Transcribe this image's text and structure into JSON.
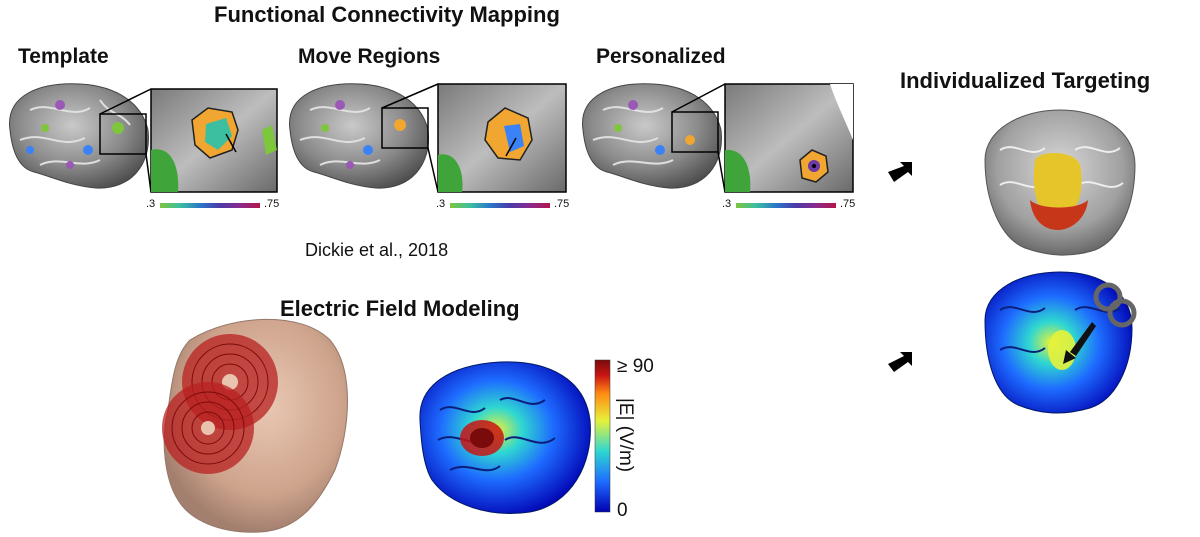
{
  "fc_mapping": {
    "title": "Functional Connectivity Mapping",
    "panels": [
      {
        "label": "Template",
        "scale_min": ".3",
        "scale_max": ".75"
      },
      {
        "label": "Move Regions",
        "scale_min": ".3",
        "scale_max": ".75"
      },
      {
        "label": "Personalized",
        "scale_min": ".3",
        "scale_max": ".75"
      }
    ],
    "citation": "Dickie et al., 2018",
    "scale_colors": [
      "#7ec63c",
      "#2b77c9",
      "#8a2a8e",
      "#b2164a"
    ]
  },
  "ef_modeling": {
    "title": "Electric Field Modeling",
    "colorbar": {
      "max_label": "≥ 90",
      "min_label": "0",
      "quantity_label": "|E| (V/m)",
      "colors": [
        "#0000b0",
        "#1e6cff",
        "#2fd7d1",
        "#e6f23a",
        "#ff8a12",
        "#c81414",
        "#7a0b0b"
      ]
    }
  },
  "targeting": {
    "title": "Individualized Targeting"
  },
  "icons": [
    "brain-surface-icon",
    "zoom-inset-icon",
    "arrow-icon",
    "head-model-icon",
    "tms-coil-icon"
  ]
}
